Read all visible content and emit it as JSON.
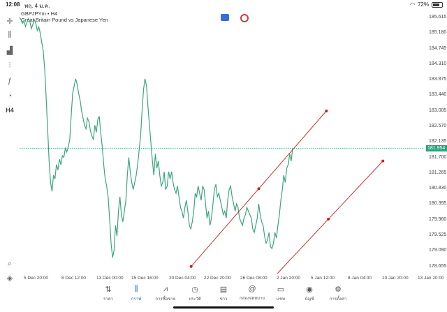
{
  "status": {
    "time": "12:08",
    "date": "พฤ. 4 ม.ค.",
    "battery": "72%"
  },
  "symbol": {
    "title": "GBPJPYm • H4",
    "description": "Great Britain Pound vs Japanese Yen"
  },
  "price_axis": {
    "ticks": [
      "185.615",
      "185.180",
      "184.745",
      "184.310",
      "183.875",
      "183.440",
      "183.005",
      "182.570",
      "182.135",
      "181.700",
      "181.265",
      "180.830",
      "180.395",
      "179.960",
      "179.525",
      "179.090",
      "178.655"
    ],
    "current": "181.954"
  },
  "time_axis": [
    "5 Dec 20:00",
    "8 Dec 12:00",
    "13 Dec 00:00",
    "15 Dec 16:00",
    "20 Dec 04:00",
    "22 Dec 20:00",
    "26 Dec 08:00",
    "2 Jan 20:00",
    "5 Jan 12:00",
    "8 Jan 04:00",
    "10 Jan 20:00",
    "13 Jan 20:00"
  ],
  "toolbar": [
    {
      "name": "crosshair-icon",
      "glyph": "✛"
    },
    {
      "name": "candles-icon",
      "glyph": "⫼"
    },
    {
      "name": "volume-bars-icon",
      "glyph": "▟"
    },
    {
      "name": "indicators-icon",
      "glyph": "⫶"
    },
    {
      "name": "function-icon",
      "glyph": "ƒ"
    },
    {
      "name": "shapes-icon",
      "glyph": "◔"
    },
    {
      "name": "timeframe-label",
      "glyph": "H4"
    }
  ],
  "nav": [
    {
      "label": "ราคา",
      "icon": "⇅",
      "active": false
    },
    {
      "label": "กราฟ",
      "icon": "⫼",
      "active": true
    },
    {
      "label": "การซื้อขาย",
      "icon": "⩘",
      "active": false
    },
    {
      "label": "ประวัติ",
      "icon": "◷",
      "active": false
    },
    {
      "label": "ข่าว",
      "icon": "▤",
      "active": false
    },
    {
      "label": "กล่องจดหมาย",
      "icon": "@",
      "active": false
    },
    {
      "label": "แชท",
      "icon": "▭",
      "active": false
    },
    {
      "label": "บัญชี",
      "icon": "◉",
      "active": false
    },
    {
      "label": "การตั้งค่า",
      "icon": "⚙",
      "active": false
    }
  ],
  "colors": {
    "line": "#3aa67a",
    "trend": "#d11a1a",
    "current": "#26a37a",
    "active": "#1a73e8"
  },
  "chart_data": {
    "type": "line",
    "title": "GBPJPYm • H4",
    "ylim": [
      178.45,
      185.83
    ],
    "series": [
      {
        "values": [
          185.62,
          185.55,
          185.45,
          185.52,
          185.36,
          185.48,
          185.58,
          185.5,
          185.3,
          185.42,
          185.55,
          185.46,
          185.25,
          185.35,
          185.18,
          184.92,
          184.7,
          184.2,
          183.4,
          182.5,
          181.6,
          181.0,
          180.75,
          181.2,
          181.1,
          181.5,
          181.35,
          181.65,
          181.5,
          181.75,
          181.7,
          181.95,
          181.85,
          182.0,
          182.2,
          182.9,
          183.5,
          183.7,
          183.9,
          183.75,
          183.5,
          183.3,
          183.0,
          182.8,
          182.6,
          182.5,
          182.8,
          182.7,
          182.45,
          182.3,
          182.2,
          182.6,
          182.4,
          182.75,
          182.85,
          182.4,
          182.0,
          181.5,
          181.1,
          180.9,
          180.6,
          180.0,
          179.3,
          178.9,
          179.1,
          179.8,
          179.5,
          180.2,
          180.6,
          180.1,
          179.9,
          180.2,
          180.5,
          181.2,
          181.7,
          181.3,
          181.0,
          180.8,
          181.0,
          181.2,
          181.5,
          181.9,
          182.3,
          183.0,
          183.6,
          183.9,
          183.7,
          183.1,
          182.6,
          182.1,
          181.6,
          181.2,
          181.8,
          181.4,
          181.6,
          181.2,
          180.9,
          181.0,
          181.3,
          180.8,
          180.9,
          181.3,
          181.1,
          181.3,
          181.0,
          180.8,
          180.7,
          180.9,
          180.6,
          180.3,
          180.2,
          180.0,
          180.3,
          180.5,
          180.2,
          179.8,
          179.7,
          179.9,
          180.2,
          180.7,
          180.6,
          180.9,
          180.7,
          180.5,
          180.9,
          180.8,
          180.4,
          180.0,
          180.2,
          179.8,
          180.0,
          180.4,
          180.8,
          180.95,
          180.6,
          180.7,
          180.5,
          180.3,
          180.1,
          180.2,
          180.0,
          180.5,
          180.8,
          180.9,
          180.6,
          180.4,
          180.2,
          180.4,
          180.3,
          180.0,
          179.9,
          179.8,
          180.0,
          180.1,
          180.3,
          180.2,
          180.1,
          180.0,
          179.7,
          179.6,
          179.8,
          180.0,
          180.4,
          180.1,
          179.9,
          179.8,
          179.5,
          179.3,
          179.4,
          179.6,
          179.2,
          179.15,
          179.3,
          179.6,
          179.45,
          179.8,
          180.1,
          180.5,
          180.8,
          181.2,
          181.0,
          181.4,
          181.5,
          181.8,
          181.6,
          181.95
        ]
      }
    ],
    "trendlines": [
      {
        "p1": [
          0.425,
          178.65
        ],
        "p2": [
          0.76,
          183.0
        ]
      },
      {
        "p1": [
          0.63,
          178.35
        ],
        "p2": [
          0.9,
          181.6
        ]
      }
    ]
  }
}
